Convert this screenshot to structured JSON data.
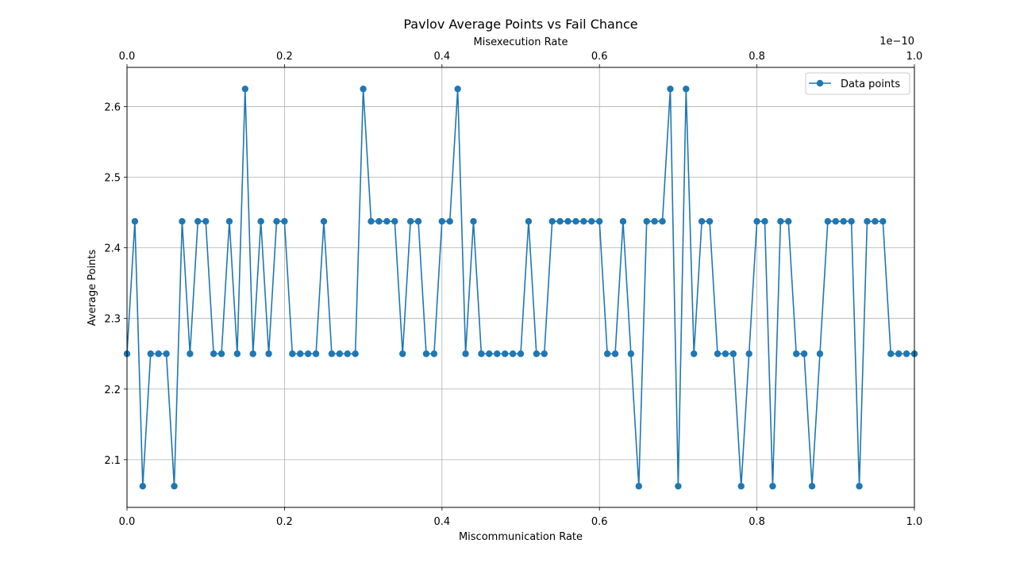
{
  "chart_data": {
    "type": "line",
    "title": "Pavlov Average Points vs Fail Chance",
    "xlabel": "Miscommunication Rate",
    "ylabel": "Average Points",
    "secondary_xlabel": "Misexecution Rate",
    "secondary_x_offset_label": "1e−10",
    "xlim": [
      0,
      1
    ],
    "ylim": [
      2.0325,
      2.6555
    ],
    "secondary_xlim": [
      0,
      1
    ],
    "x_ticks": [
      "0.0",
      "0.2",
      "0.4",
      "0.6",
      "0.8",
      "1.0"
    ],
    "secondary_x_ticks": [
      "0.0",
      "0.2",
      "0.4",
      "0.6",
      "0.8",
      "1.0"
    ],
    "y_ticks": [
      "2.1",
      "2.2",
      "2.3",
      "2.4",
      "2.5",
      "2.6"
    ],
    "grid": true,
    "legend_position": "top-right",
    "series": [
      {
        "name": "Data points",
        "color": "#1f77b4",
        "marker": "circle",
        "x": [
          0.0,
          0.01,
          0.02,
          0.03,
          0.04,
          0.05,
          0.06,
          0.07,
          0.08,
          0.09,
          0.1,
          0.11,
          0.12,
          0.13,
          0.14,
          0.15,
          0.16,
          0.17,
          0.18,
          0.19,
          0.2,
          0.21,
          0.22,
          0.23,
          0.24,
          0.25,
          0.26,
          0.27,
          0.28,
          0.29,
          0.3,
          0.31,
          0.32,
          0.33,
          0.34,
          0.35,
          0.36,
          0.37,
          0.38,
          0.39,
          0.4,
          0.41,
          0.42,
          0.43,
          0.44,
          0.45,
          0.46,
          0.47,
          0.48,
          0.49,
          0.5,
          0.51,
          0.52,
          0.53,
          0.54,
          0.55,
          0.56,
          0.57,
          0.58,
          0.59,
          0.6,
          0.61,
          0.62,
          0.63,
          0.64,
          0.65,
          0.66,
          0.67,
          0.68,
          0.69,
          0.7,
          0.71,
          0.72,
          0.73,
          0.74,
          0.75,
          0.76,
          0.77,
          0.78,
          0.79,
          0.8,
          0.81,
          0.82,
          0.83,
          0.84,
          0.85,
          0.86,
          0.87,
          0.88,
          0.89,
          0.9,
          0.91,
          0.92,
          0.93,
          0.94,
          0.95,
          0.96,
          0.97,
          0.98,
          0.99,
          1.0
        ],
        "y": [
          2.25,
          2.4375,
          2.0625,
          2.25,
          2.25,
          2.25,
          2.0625,
          2.4375,
          2.25,
          2.4375,
          2.4375,
          2.25,
          2.25,
          2.4375,
          2.25,
          2.625,
          2.25,
          2.4375,
          2.25,
          2.4375,
          2.4375,
          2.25,
          2.25,
          2.25,
          2.25,
          2.4375,
          2.25,
          2.25,
          2.25,
          2.25,
          2.625,
          2.4375,
          2.4375,
          2.4375,
          2.4375,
          2.25,
          2.4375,
          2.4375,
          2.25,
          2.25,
          2.4375,
          2.4375,
          2.625,
          2.25,
          2.4375,
          2.25,
          2.25,
          2.25,
          2.25,
          2.25,
          2.25,
          2.4375,
          2.25,
          2.25,
          2.4375,
          2.4375,
          2.4375,
          2.4375,
          2.4375,
          2.4375,
          2.4375,
          2.25,
          2.25,
          2.4375,
          2.25,
          2.0625,
          2.4375,
          2.4375,
          2.4375,
          2.625,
          2.0625,
          2.625,
          2.25,
          2.4375,
          2.4375,
          2.25,
          2.25,
          2.25,
          2.0625,
          2.25,
          2.4375,
          2.4375,
          2.0625,
          2.4375,
          2.4375,
          2.25,
          2.25,
          2.0625,
          2.25,
          2.4375,
          2.4375,
          2.4375,
          2.4375,
          2.0625,
          2.4375,
          2.4375,
          2.4375,
          2.25,
          2.25,
          2.25,
          2.25
        ]
      }
    ]
  }
}
